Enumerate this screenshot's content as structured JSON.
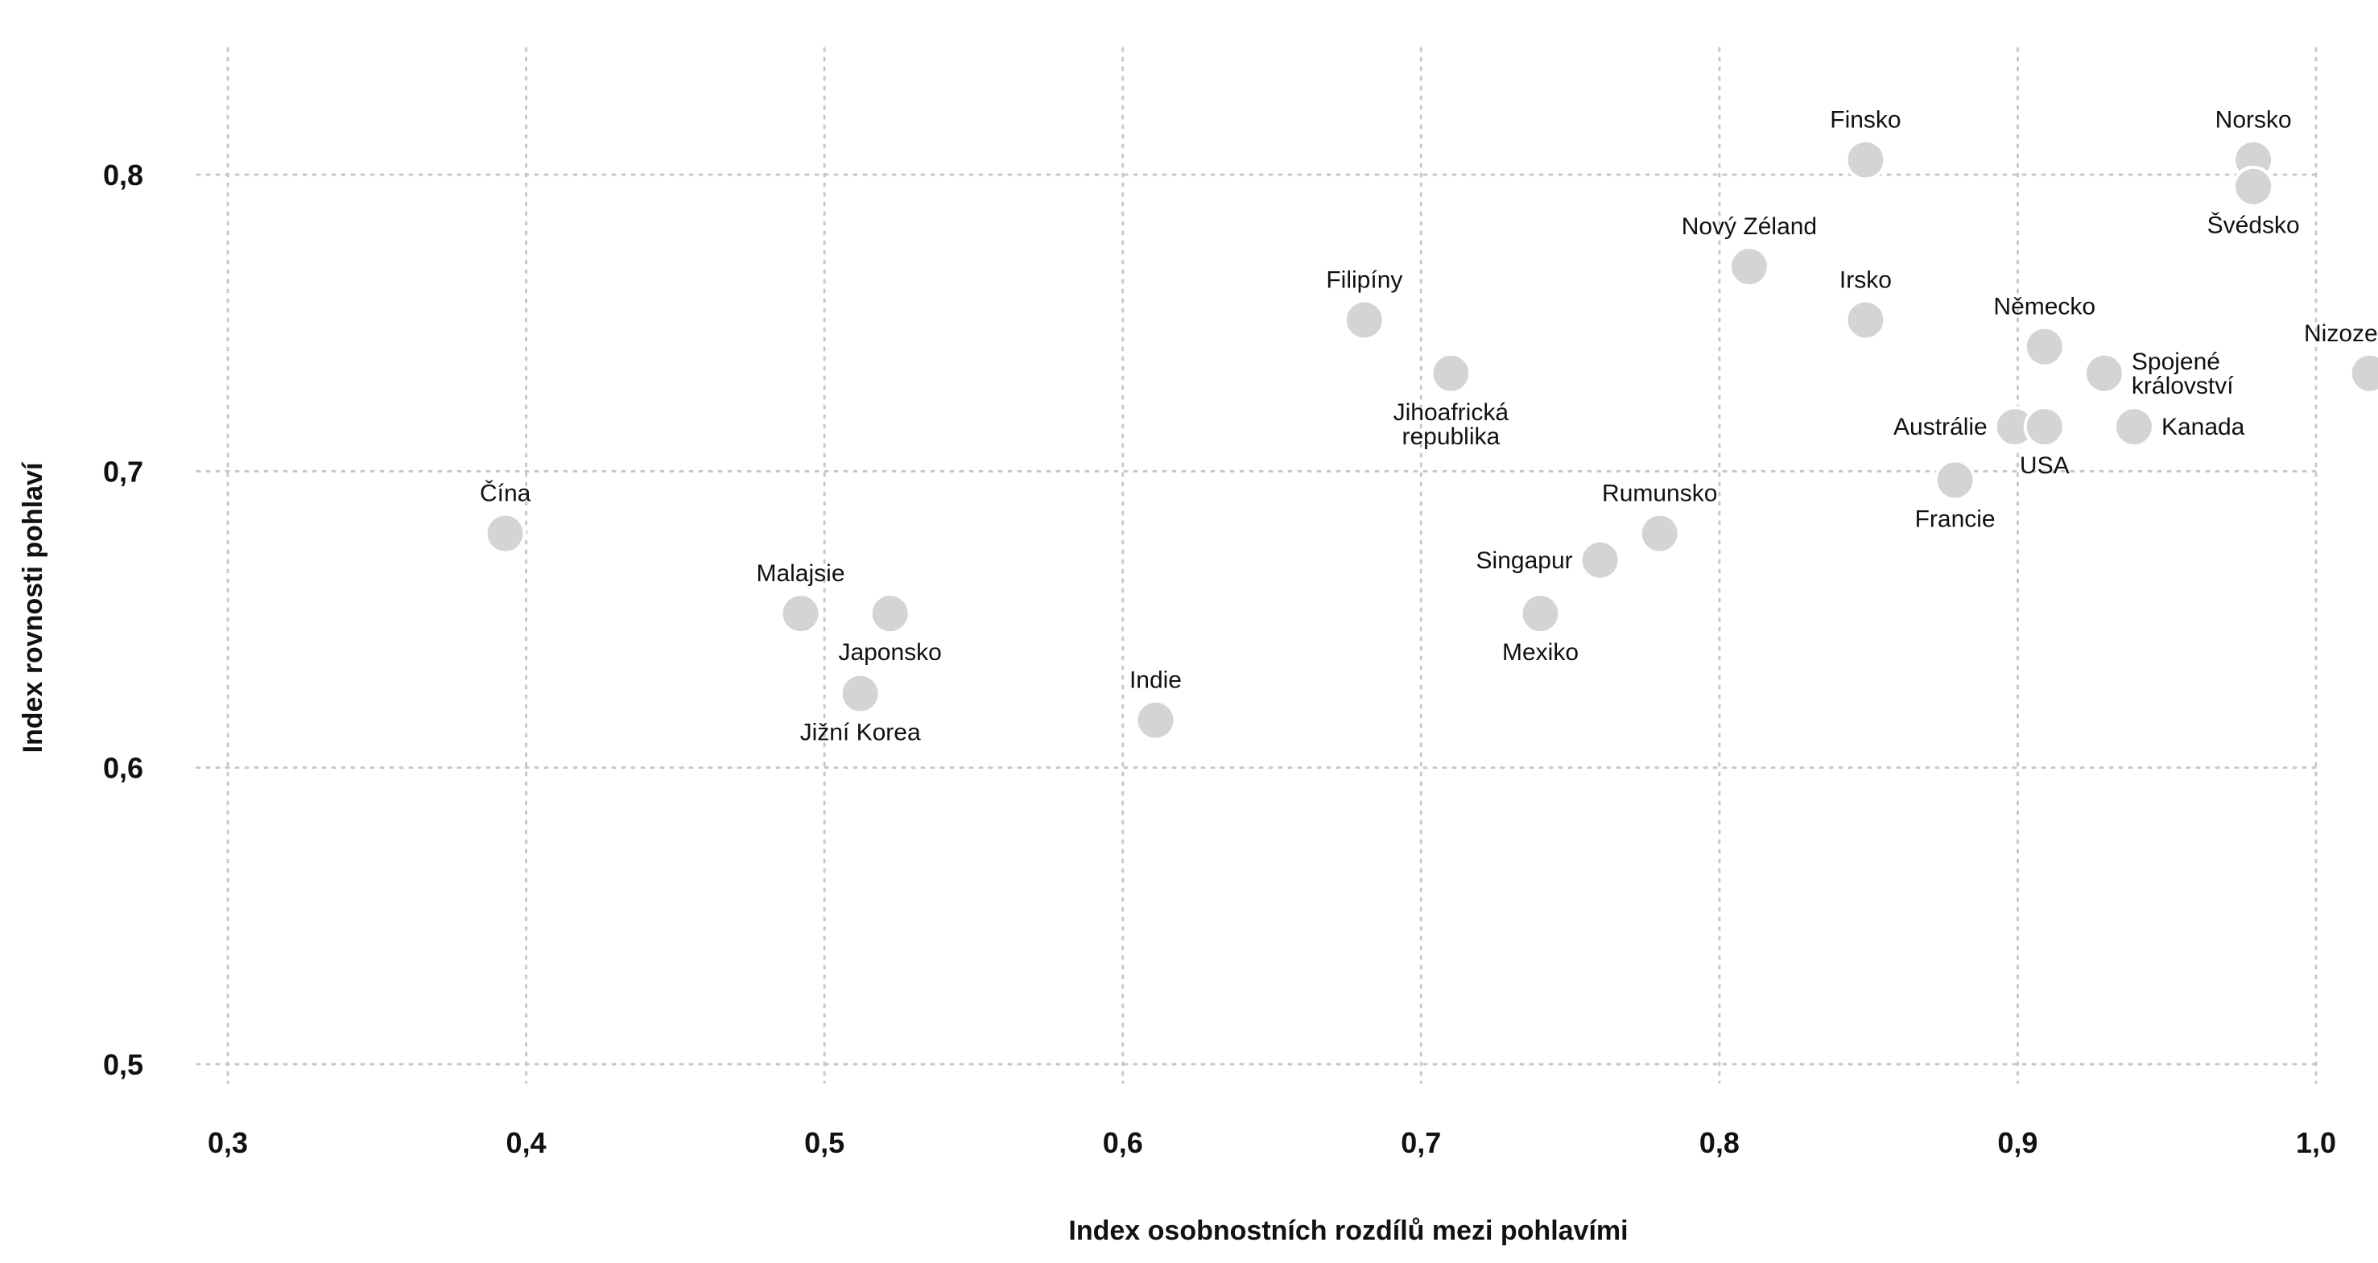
{
  "chart_data": {
    "type": "scatter",
    "xlabel": "Index osobnostních rozdílů mezi pohlavími",
    "ylabel": "Index rovnosti pohlaví",
    "xlim": [
      0.29,
      1.025
    ],
    "ylim": [
      0.49,
      0.83
    ],
    "x_ticks": [
      {
        "value": 0.3,
        "label": "0,3"
      },
      {
        "value": 0.4,
        "label": "0,4"
      },
      {
        "value": 0.5,
        "label": "0,5"
      },
      {
        "value": 0.6,
        "label": "0,6"
      },
      {
        "value": 0.7,
        "label": "0,7"
      },
      {
        "value": 0.8,
        "label": "0,8"
      },
      {
        "value": 0.9,
        "label": "0,9"
      },
      {
        "value": 1.0,
        "label": "1,0"
      }
    ],
    "y_ticks": [
      {
        "value": 0.5,
        "label": "0,5"
      },
      {
        "value": 0.6,
        "label": "0,6"
      },
      {
        "value": 0.7,
        "label": "0,7"
      },
      {
        "value": 0.8,
        "label": "0,8"
      }
    ],
    "grid": true,
    "point_color": "#d4d4d4",
    "points": [
      {
        "label": [
          "Čína"
        ],
        "x": 0.393,
        "y": 0.679,
        "pos": "above"
      },
      {
        "label": [
          "Malajsie"
        ],
        "x": 0.492,
        "y": 0.652,
        "pos": "above"
      },
      {
        "label": [
          "Japonsko"
        ],
        "x": 0.522,
        "y": 0.652,
        "pos": "below"
      },
      {
        "label": [
          "Jižní Korea"
        ],
        "x": 0.512,
        "y": 0.625,
        "pos": "below"
      },
      {
        "label": [
          "Indie"
        ],
        "x": 0.611,
        "y": 0.616,
        "pos": "above"
      },
      {
        "label": [
          "Filipíny"
        ],
        "x": 0.681,
        "y": 0.751,
        "pos": "above"
      },
      {
        "label": [
          "Jihoafrická",
          "republika"
        ],
        "x": 0.71,
        "y": 0.733,
        "pos": "below"
      },
      {
        "label": [
          "Mexiko"
        ],
        "x": 0.74,
        "y": 0.652,
        "pos": "below"
      },
      {
        "label": [
          "Singapur"
        ],
        "x": 0.76,
        "y": 0.67,
        "pos": "left"
      },
      {
        "label": [
          "Rumunsko"
        ],
        "x": 0.78,
        "y": 0.679,
        "pos": "above"
      },
      {
        "label": [
          "Nový Zéland"
        ],
        "x": 0.81,
        "y": 0.769,
        "pos": "above"
      },
      {
        "label": [
          "Finsko"
        ],
        "x": 0.849,
        "y": 0.805,
        "pos": "above"
      },
      {
        "label": [
          "Irsko"
        ],
        "x": 0.849,
        "y": 0.751,
        "pos": "above"
      },
      {
        "label": [
          "Francie"
        ],
        "x": 0.879,
        "y": 0.697,
        "pos": "below"
      },
      {
        "label": [
          "Austrálie"
        ],
        "x": 0.899,
        "y": 0.715,
        "pos": "left"
      },
      {
        "label": [
          "USA"
        ],
        "x": 0.909,
        "y": 0.715,
        "pos": "below"
      },
      {
        "label": [
          "Německo"
        ],
        "x": 0.909,
        "y": 0.742,
        "pos": "above"
      },
      {
        "label": [
          "Spojené",
          "království"
        ],
        "x": 0.929,
        "y": 0.733,
        "pos": "right"
      },
      {
        "label": [
          "Kanada"
        ],
        "x": 0.939,
        "y": 0.715,
        "pos": "right"
      },
      {
        "label": [
          "Norsko"
        ],
        "x": 0.979,
        "y": 0.805,
        "pos": "above"
      },
      {
        "label": [
          "Švédsko"
        ],
        "x": 0.979,
        "y": 0.796,
        "pos": "below"
      },
      {
        "label": [
          "Nizozemsko"
        ],
        "x": 1.018,
        "y": 0.733,
        "pos": "above"
      }
    ]
  }
}
